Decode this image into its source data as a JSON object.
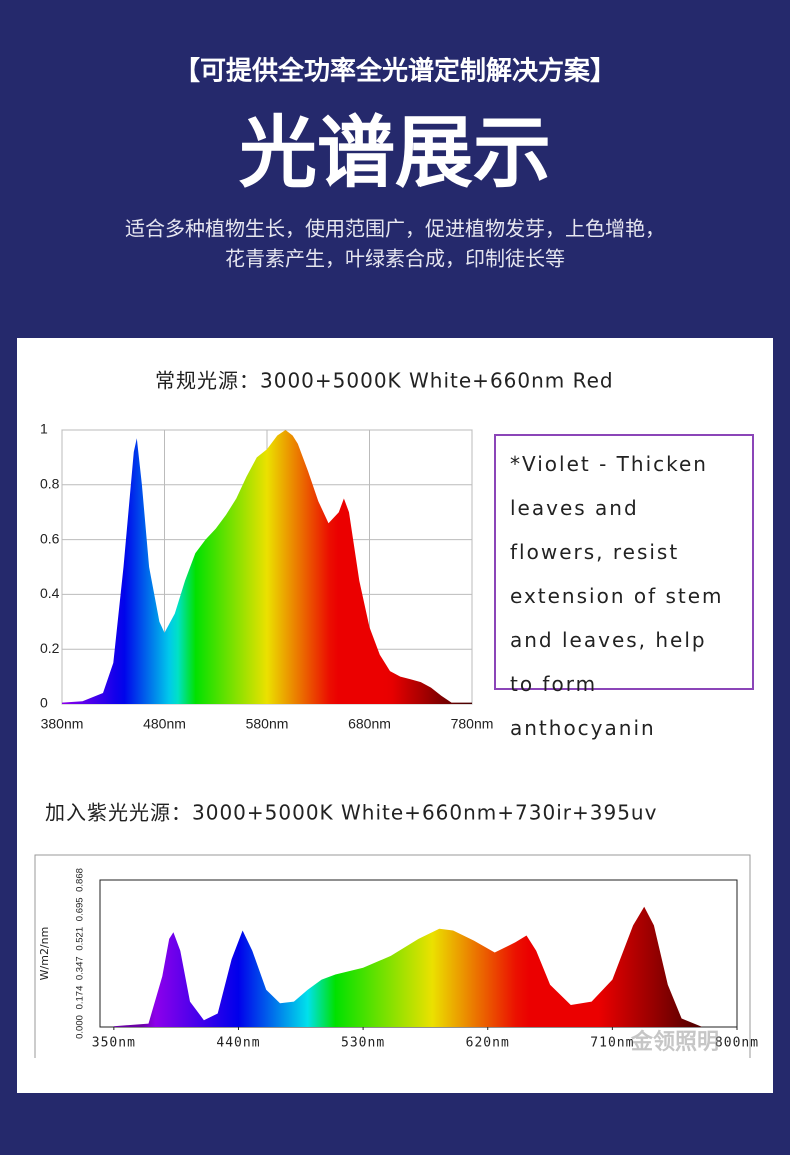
{
  "header": {
    "tagline": "【可提供全功率全光谱定制解决方案】",
    "title": "光谱展示",
    "subtitle": [
      "适合多种植物生长，使用范围广，促进植物发芽，上色增艳，",
      "花青素产生，叶绿素合成，印制徒长等"
    ]
  },
  "chart_data": [
    {
      "type": "area",
      "title": "常规光源：3000+5000K White+660nm Red",
      "x": [
        380,
        400,
        420,
        430,
        440,
        450,
        453,
        458,
        465,
        475,
        480,
        490,
        500,
        510,
        520,
        530,
        540,
        550,
        560,
        570,
        580,
        590,
        598,
        605,
        610,
        620,
        630,
        640,
        650,
        655,
        660,
        670,
        680,
        690,
        700,
        710,
        720,
        730,
        740,
        750,
        760,
        780
      ],
      "values": [
        0.005,
        0.01,
        0.04,
        0.15,
        0.5,
        0.92,
        0.97,
        0.8,
        0.5,
        0.3,
        0.26,
        0.33,
        0.45,
        0.55,
        0.6,
        0.64,
        0.69,
        0.75,
        0.83,
        0.9,
        0.93,
        0.98,
        1.0,
        0.98,
        0.95,
        0.85,
        0.74,
        0.66,
        0.7,
        0.75,
        0.7,
        0.45,
        0.28,
        0.18,
        0.12,
        0.1,
        0.09,
        0.08,
        0.06,
        0.03,
        0.005,
        0.005
      ],
      "xlim": [
        380,
        780
      ],
      "xticks": [
        {
          "value": 380,
          "label": "380nm"
        },
        {
          "value": 480,
          "label": "480nm"
        },
        {
          "value": 580,
          "label": "580nm"
        },
        {
          "value": 680,
          "label": "680nm"
        },
        {
          "value": 780,
          "label": "780nm"
        }
      ],
      "ylim": [
        0,
        1
      ],
      "yticks": [
        0,
        0.2,
        0.4,
        0.6,
        0.8,
        1
      ],
      "grid": true,
      "annotation": "*Violet - Thicken leaves and flowers, resist extension of stem and leaves, help to form anthocyanin"
    },
    {
      "type": "area",
      "title": "加入紫光光源：3000+5000K White+660nm+730ir+395uv",
      "y_label": "W/m2/nm",
      "x": [
        350,
        375,
        385,
        390,
        393,
        398,
        405,
        415,
        425,
        435,
        443,
        450,
        460,
        470,
        480,
        490,
        500,
        510,
        530,
        550,
        570,
        585,
        595,
        610,
        625,
        640,
        648,
        655,
        665,
        680,
        695,
        710,
        725,
        733,
        740,
        750,
        760,
        775,
        800
      ],
      "values": [
        0.005,
        0.02,
        0.3,
        0.52,
        0.56,
        0.45,
        0.15,
        0.04,
        0.08,
        0.4,
        0.57,
        0.45,
        0.22,
        0.14,
        0.15,
        0.22,
        0.28,
        0.31,
        0.35,
        0.42,
        0.52,
        0.58,
        0.57,
        0.51,
        0.44,
        0.5,
        0.54,
        0.45,
        0.25,
        0.13,
        0.15,
        0.28,
        0.6,
        0.71,
        0.6,
        0.25,
        0.05,
        0,
        0
      ],
      "xlim": [
        340,
        800
      ],
      "xticks": [
        {
          "value": 350,
          "label": "350nm"
        },
        {
          "value": 440,
          "label": "440nm"
        },
        {
          "value": 530,
          "label": "530nm"
        },
        {
          "value": 620,
          "label": "620nm"
        },
        {
          "value": 710,
          "label": "710nm"
        },
        {
          "value": 800,
          "label": "800nm"
        }
      ],
      "ylim": [
        0,
        0.868
      ],
      "yticks": [
        {
          "value": 0,
          "label": "0.000"
        },
        0.174,
        0.347,
        0.521,
        0.695,
        0.868
      ],
      "grid": false,
      "watermark": "金领照明"
    }
  ]
}
